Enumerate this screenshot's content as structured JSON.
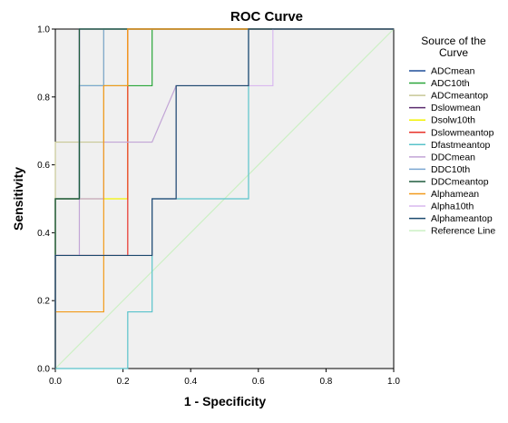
{
  "chart_data": {
    "type": "line",
    "title": "ROC Curve",
    "xlabel": "1 - Specificity",
    "ylabel": "Sensitivity",
    "xlim": [
      0,
      1
    ],
    "ylim": [
      0,
      1
    ],
    "x_ticks": [
      "0.0",
      "0.2",
      "0.4",
      "0.6",
      "0.8",
      "1.0"
    ],
    "y_ticks": [
      "0.0",
      "0.2",
      "0.4",
      "0.6",
      "0.8",
      "1.0"
    ],
    "grid": false,
    "legend_title": "Source of the Curve",
    "legend_position": "right",
    "series": [
      {
        "name": "ADCmean",
        "color": "#1f4e99",
        "points": [
          [
            0,
            0
          ],
          [
            0,
            0.5
          ],
          [
            0.071,
            0.5
          ],
          [
            0.071,
            1
          ],
          [
            1,
            1
          ]
        ]
      },
      {
        "name": "ADC10th",
        "color": "#2aa63a",
        "points": [
          [
            0,
            0
          ],
          [
            0,
            0.5
          ],
          [
            0.071,
            0.5
          ],
          [
            0.071,
            0.833
          ],
          [
            0.286,
            0.833
          ],
          [
            0.286,
            1
          ],
          [
            1,
            1
          ]
        ]
      },
      {
        "name": "ADCmeantop",
        "color": "#c8c896",
        "points": [
          [
            0,
            0
          ],
          [
            0,
            0.667
          ],
          [
            0.143,
            0.667
          ],
          [
            0.143,
            1
          ],
          [
            1,
            1
          ]
        ]
      },
      {
        "name": "Dslowmean",
        "color": "#5b2c6f",
        "points": [
          [
            0,
            0
          ],
          [
            0,
            0.5
          ],
          [
            0.071,
            0.5
          ],
          [
            0.071,
            1
          ],
          [
            1,
            1
          ]
        ]
      },
      {
        "name": "Dsolw10th",
        "color": "#f2f200",
        "points": [
          [
            0,
            0
          ],
          [
            0,
            0.5
          ],
          [
            0.214,
            0.5
          ],
          [
            0.214,
            1
          ],
          [
            1,
            1
          ]
        ]
      },
      {
        "name": "Dslowmeantop",
        "color": "#e8322a",
        "points": [
          [
            0,
            0
          ],
          [
            0,
            0.333
          ],
          [
            0.214,
            0.333
          ],
          [
            0.214,
            1
          ],
          [
            1,
            1
          ]
        ]
      },
      {
        "name": "Dfastmeantop",
        "color": "#59c3cb",
        "points": [
          [
            0,
            0
          ],
          [
            0.214,
            0
          ],
          [
            0.214,
            0.167
          ],
          [
            0.286,
            0.167
          ],
          [
            0.286,
            0.5
          ],
          [
            0.571,
            0.5
          ],
          [
            0.571,
            1
          ],
          [
            1,
            1
          ]
        ]
      },
      {
        "name": "DDCmean",
        "color": "#c2a5d6",
        "points": [
          [
            0,
            0
          ],
          [
            0,
            0.333
          ],
          [
            0.071,
            0.333
          ],
          [
            0.071,
            0.5
          ],
          [
            0.143,
            0.5
          ],
          [
            0.143,
            0.667
          ],
          [
            0.286,
            0.667
          ],
          [
            0.357,
            0.833
          ],
          [
            0.571,
            0.833
          ],
          [
            0.571,
            1
          ],
          [
            1,
            1
          ]
        ]
      },
      {
        "name": "DDC10th",
        "color": "#7ba7d1",
        "points": [
          [
            0,
            0
          ],
          [
            0,
            0.5
          ],
          [
            0.071,
            0.5
          ],
          [
            0.071,
            0.833
          ],
          [
            0.143,
            0.833
          ],
          [
            0.143,
            1
          ],
          [
            1,
            1
          ]
        ]
      },
      {
        "name": "DDCmeantop",
        "color": "#1e5b3d",
        "points": [
          [
            0,
            0
          ],
          [
            0,
            0.5
          ],
          [
            0.071,
            0.5
          ],
          [
            0.071,
            1
          ],
          [
            1,
            1
          ]
        ]
      },
      {
        "name": "Alphamean",
        "color": "#f29a1a",
        "points": [
          [
            0,
            0
          ],
          [
            0,
            0.167
          ],
          [
            0.143,
            0.167
          ],
          [
            0.143,
            0.833
          ],
          [
            0.214,
            0.833
          ],
          [
            0.214,
            1
          ],
          [
            1,
            1
          ]
        ]
      },
      {
        "name": "Alpha10th",
        "color": "#d9b8ef",
        "points": [
          [
            0,
            0
          ],
          [
            0,
            0.333
          ],
          [
            0.286,
            0.333
          ],
          [
            0.286,
            0.5
          ],
          [
            0.357,
            0.5
          ],
          [
            0.357,
            0.833
          ],
          [
            0.643,
            0.833
          ],
          [
            0.643,
            1
          ],
          [
            1,
            1
          ]
        ]
      },
      {
        "name": "Alphameantop",
        "color": "#1c4a6e",
        "points": [
          [
            0,
            0
          ],
          [
            0,
            0.333
          ],
          [
            0.286,
            0.333
          ],
          [
            0.286,
            0.5
          ],
          [
            0.357,
            0.5
          ],
          [
            0.357,
            0.833
          ],
          [
            0.571,
            0.833
          ],
          [
            0.571,
            1
          ],
          [
            1,
            1
          ]
        ]
      },
      {
        "name": "Reference Line",
        "color": "#ccf0c4",
        "points": [
          [
            0,
            0
          ],
          [
            1,
            1
          ]
        ]
      }
    ]
  }
}
